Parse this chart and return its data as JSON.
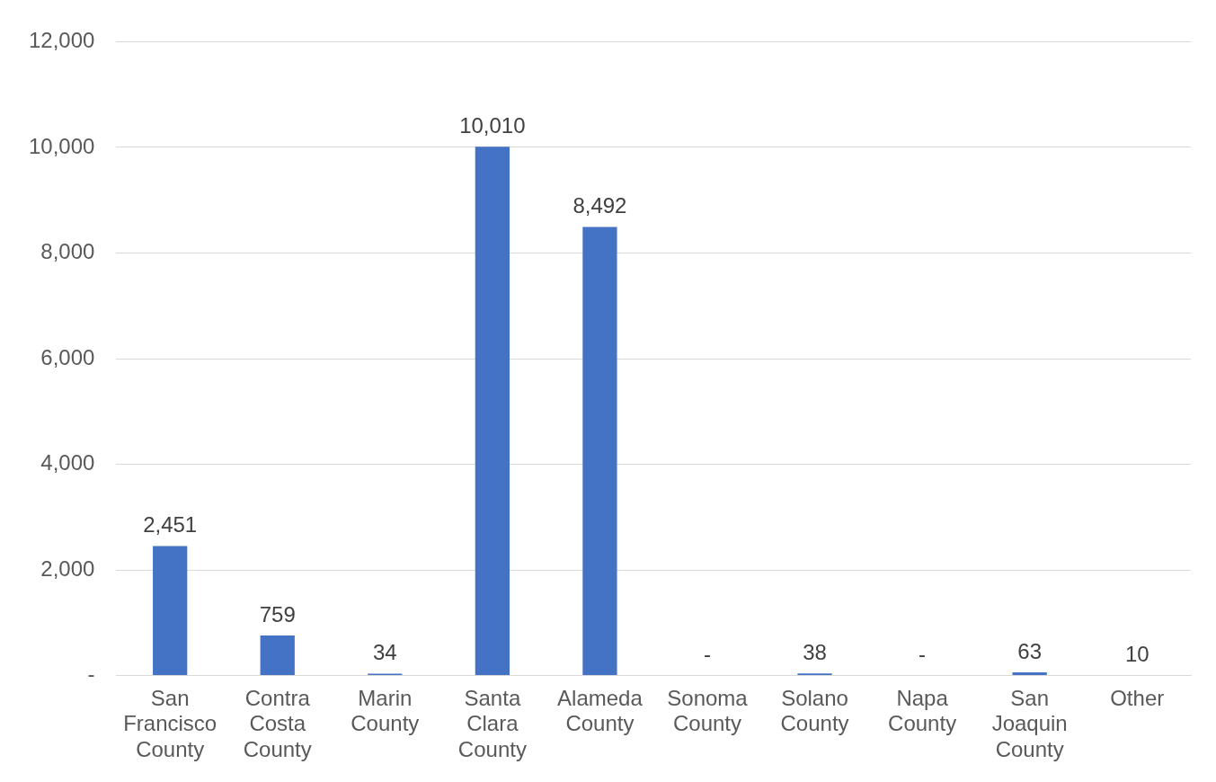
{
  "chart_data": {
    "type": "bar",
    "categories": [
      "San Francisco County",
      "Contra Costa County",
      "Marin County",
      "Santa Clara County",
      "Alameda County",
      "Sonoma County",
      "Solano County",
      "Napa County",
      "San Joaquin County",
      "Other"
    ],
    "values": [
      2451,
      759,
      34,
      10010,
      8492,
      0,
      38,
      0,
      63,
      10
    ],
    "value_labels": [
      "2,451",
      "759",
      "34",
      "10,010",
      "8,492",
      "-",
      "38",
      "-",
      "63",
      "10"
    ],
    "color": "#4472c4",
    "ylim": [
      0,
      12000
    ],
    "yticks": [
      {
        "value": 0,
        "label": "-"
      },
      {
        "value": 2000,
        "label": "2,000"
      },
      {
        "value": 4000,
        "label": "4,000"
      },
      {
        "value": 6000,
        "label": "6,000"
      },
      {
        "value": 8000,
        "label": "8,000"
      },
      {
        "value": 10000,
        "label": "10,000"
      },
      {
        "value": 12000,
        "label": "12,000"
      }
    ],
    "grid": "y",
    "legend": false
  }
}
